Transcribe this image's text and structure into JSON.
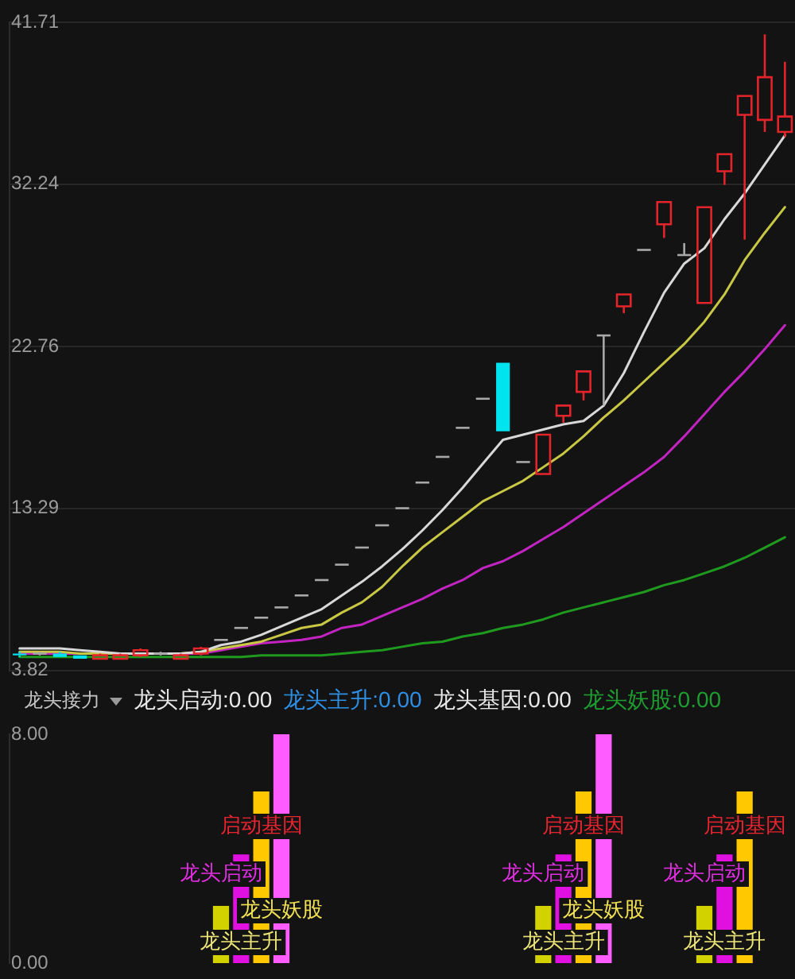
{
  "chart_data": [
    {
      "type": "candlestick",
      "categories": [
        null,
        null,
        null,
        null,
        null,
        null,
        null,
        null,
        null,
        null,
        null,
        null,
        null,
        null,
        null,
        null,
        null,
        null,
        null,
        null,
        null,
        null,
        null,
        null,
        null,
        null,
        null,
        null,
        null,
        null,
        null,
        null,
        null,
        null,
        null,
        null,
        null,
        null,
        null
      ],
      "ohlc": [
        [
          4.8,
          4.9,
          4.6,
          4.7
        ],
        [
          4.8,
          4.9,
          4.7,
          4.8
        ],
        [
          4.8,
          4.9,
          4.6,
          4.6
        ],
        [
          4.7,
          4.7,
          4.5,
          4.5
        ],
        [
          4.5,
          4.8,
          4.5,
          4.7
        ],
        [
          4.5,
          4.8,
          4.5,
          4.7
        ],
        [
          4.7,
          5.1,
          4.6,
          5.0
        ],
        [
          4.8,
          4.9,
          4.7,
          4.8
        ],
        [
          4.5,
          4.8,
          4.5,
          4.7
        ],
        [
          4.8,
          5.2,
          4.7,
          5.1
        ],
        [
          5.6,
          5.6,
          5.6,
          5.6
        ],
        [
          6.3,
          6.3,
          6.3,
          6.3
        ],
        [
          6.9,
          6.9,
          6.9,
          6.9
        ],
        [
          7.5,
          7.5,
          7.5,
          7.5
        ],
        [
          8.2,
          8.2,
          8.2,
          8.2
        ],
        [
          9.1,
          9.1,
          9.1,
          9.1
        ],
        [
          10.0,
          10.0,
          10.0,
          10.0
        ],
        [
          11.0,
          11.0,
          11.0,
          11.0
        ],
        [
          12.3,
          12.3,
          12.3,
          12.3
        ],
        [
          13.3,
          13.3,
          13.3,
          13.3
        ],
        [
          14.8,
          14.8,
          14.8,
          14.8
        ],
        [
          16.3,
          16.3,
          16.3,
          16.3
        ],
        [
          18.0,
          18.0,
          18.0,
          18.0
        ],
        [
          19.7,
          19.7,
          19.7,
          19.7
        ],
        [
          21.8,
          21.8,
          17.8,
          17.8
        ],
        [
          16.0,
          16.0,
          16.0,
          16.0
        ],
        [
          15.3,
          17.6,
          15.3,
          17.6
        ],
        [
          18.7,
          19.3,
          18.3,
          19.3
        ],
        [
          20.1,
          21.3,
          19.6,
          21.3
        ],
        [
          23.4,
          23.4,
          19.3,
          23.4
        ],
        [
          25.1,
          25.8,
          24.7,
          25.8
        ],
        [
          28.4,
          28.4,
          28.4,
          28.4
        ],
        [
          29.9,
          31.2,
          29.1,
          31.2
        ],
        [
          28.1,
          28.8,
          28.1,
          28.1
        ],
        [
          25.3,
          30.9,
          25.3,
          30.9
        ],
        [
          33.0,
          34.0,
          32.2,
          34.0
        ],
        [
          36.3,
          37.4,
          29.0,
          37.4
        ],
        [
          36.0,
          41.0,
          35.3,
          38.5
        ],
        [
          35.3,
          39.4,
          35.0,
          36.2
        ]
      ],
      "colors": [
        "#00e4ef",
        "#a8a8a8",
        "#00e4ef",
        "#00e4ef",
        "#e3242b",
        "#e3242b",
        "#e3242b",
        "#a8a8a8",
        "#e3242b",
        "#e3242b",
        "#a8a8a8",
        "#a8a8a8",
        "#a8a8a8",
        "#a8a8a8",
        "#a8a8a8",
        "#a8a8a8",
        "#a8a8a8",
        "#a8a8a8",
        "#a8a8a8",
        "#a8a8a8",
        "#a8a8a8",
        "#a8a8a8",
        "#a8a8a8",
        "#a8a8a8",
        "#00e4ef",
        "#a8a8a8",
        "#e3242b",
        "#e3242b",
        "#e3242b",
        "#a8a8a8",
        "#e3242b",
        "#a8a8a8",
        "#e3242b",
        "#a8a8a8",
        "#e3242b",
        "#e3242b",
        "#e3242b",
        "#e3242b",
        "#e3242b"
      ],
      "series": [
        {
          "type": "line",
          "color": "#d8d8d8",
          "values": [
            5.1,
            5.1,
            5.1,
            5.0,
            4.9,
            4.8,
            4.8,
            4.8,
            4.8,
            4.9,
            5.3,
            5.5,
            5.9,
            6.4,
            6.9,
            7.4,
            8.2,
            9.0,
            9.9,
            10.9,
            12.0,
            13.2,
            14.5,
            15.9,
            17.3,
            17.6,
            17.9,
            18.2,
            18.4,
            19.3,
            21.2,
            23.6,
            25.9,
            27.6,
            28.5,
            30.2,
            31.7,
            33.4,
            35.1
          ]
        },
        {
          "type": "line",
          "color": "#c8c844",
          "values": [
            4.9,
            4.9,
            4.9,
            4.8,
            4.8,
            4.8,
            4.8,
            4.8,
            4.8,
            4.9,
            5.1,
            5.3,
            5.5,
            5.9,
            6.3,
            6.5,
            7.2,
            7.8,
            8.7,
            9.9,
            11.0,
            11.9,
            12.8,
            13.7,
            14.3,
            14.9,
            15.7,
            16.5,
            17.5,
            18.6,
            19.6,
            20.7,
            21.8,
            22.9,
            24.2,
            25.8,
            27.8,
            29.4,
            30.9
          ]
        },
        {
          "type": "line",
          "color": "#c224c2",
          "values": [
            4.8,
            4.8,
            4.8,
            4.8,
            4.8,
            4.8,
            4.8,
            4.8,
            4.8,
            4.8,
            5.0,
            5.2,
            5.4,
            5.5,
            5.6,
            5.8,
            6.3,
            6.5,
            7.0,
            7.5,
            8.0,
            8.6,
            9.1,
            9.8,
            10.2,
            10.8,
            11.5,
            12.2,
            13.0,
            13.8,
            14.6,
            15.4,
            16.3,
            17.5,
            18.8,
            20.1,
            21.3,
            22.6,
            24.0
          ]
        },
        {
          "type": "line",
          "color": "#1f9a1f",
          "values": [
            4.6,
            4.6,
            4.6,
            4.6,
            4.6,
            4.6,
            4.6,
            4.6,
            4.6,
            4.6,
            4.6,
            4.6,
            4.7,
            4.7,
            4.7,
            4.7,
            4.8,
            4.9,
            5.0,
            5.2,
            5.4,
            5.5,
            5.8,
            6.0,
            6.3,
            6.5,
            6.8,
            7.2,
            7.5,
            7.8,
            8.1,
            8.4,
            8.8,
            9.1,
            9.5,
            9.9,
            10.4,
            11.0,
            11.6
          ]
        }
      ],
      "ylim": [
        3.82,
        41.71
      ],
      "yticks": [
        3.82,
        13.29,
        22.76,
        32.24,
        41.71
      ],
      "grid": "y",
      "tick_labels": "y"
    },
    {
      "type": "bar",
      "title": "龙头接力",
      "annotations": [
        "龙头启动:0.00",
        "龙头主升:0.00",
        "龙头基因:0.00",
        "龙头妖股:0.00"
      ],
      "categories": [
        null,
        null,
        null,
        null,
        null,
        null,
        null,
        null,
        null,
        null,
        null,
        null,
        null,
        null,
        null,
        null,
        null,
        null,
        null,
        null,
        null,
        null,
        null,
        null,
        null,
        null,
        null,
        null,
        null,
        null,
        null,
        null,
        null,
        null,
        null,
        null,
        null,
        null,
        null
      ],
      "series": [
        {
          "color": "#d2d200",
          "values": [
            null,
            null,
            null,
            null,
            null,
            null,
            null,
            null,
            null,
            null,
            2,
            null,
            null,
            null,
            null,
            null,
            null,
            null,
            null,
            null,
            null,
            null,
            null,
            null,
            null,
            null,
            2,
            null,
            null,
            null,
            null,
            null,
            null,
            null,
            2,
            null,
            null,
            null,
            null
          ],
          "value_labels": [
            null,
            null,
            null,
            null,
            null,
            null,
            null,
            null,
            null,
            null,
            "龙头启动",
            null,
            null,
            null,
            null,
            null,
            null,
            null,
            null,
            null,
            null,
            null,
            null,
            null,
            null,
            null,
            "龙头启动",
            null,
            null,
            null,
            null,
            null,
            null,
            null,
            "龙头启动",
            null,
            null,
            null,
            null
          ]
        },
        {
          "color": "#e010e0",
          "values": [
            null,
            null,
            null,
            null,
            null,
            null,
            null,
            null,
            null,
            null,
            null,
            3.8,
            null,
            null,
            null,
            null,
            null,
            null,
            null,
            null,
            null,
            null,
            null,
            null,
            null,
            null,
            null,
            3.8,
            null,
            null,
            null,
            null,
            null,
            null,
            null,
            3.8,
            null,
            null,
            null
          ],
          "value_labels": [
            null,
            null,
            null,
            null,
            null,
            null,
            null,
            null,
            null,
            null,
            null,
            "龙头主升",
            null,
            null,
            null,
            null,
            null,
            null,
            null,
            null,
            null,
            null,
            null,
            null,
            null,
            null,
            null,
            "龙头主升",
            null,
            null,
            null,
            null,
            null,
            null,
            null,
            "龙头主升",
            null,
            null,
            null
          ]
        },
        {
          "color": "#ffc800",
          "values": [
            null,
            null,
            null,
            null,
            null,
            null,
            null,
            null,
            null,
            null,
            null,
            null,
            6,
            null,
            null,
            null,
            null,
            null,
            null,
            null,
            null,
            null,
            null,
            null,
            null,
            null,
            null,
            null,
            6,
            null,
            null,
            null,
            null,
            null,
            null,
            null,
            6,
            null,
            null
          ],
          "value_labels": [
            null,
            null,
            null,
            null,
            null,
            null,
            null,
            null,
            null,
            null,
            null,
            null,
            "启动基因",
            null,
            null,
            null,
            null,
            null,
            null,
            null,
            null,
            null,
            null,
            null,
            null,
            null,
            null,
            null,
            "启动基因",
            null,
            null,
            null,
            null,
            null,
            null,
            null,
            "启动基因",
            null,
            null
          ]
        },
        {
          "color": "#ff5cff",
          "values": [
            null,
            null,
            null,
            null,
            null,
            null,
            null,
            null,
            null,
            null,
            null,
            null,
            null,
            8,
            null,
            null,
            null,
            null,
            null,
            null,
            null,
            null,
            null,
            null,
            null,
            null,
            null,
            null,
            null,
            8,
            null,
            null,
            null,
            null,
            null,
            null,
            null,
            null,
            null
          ],
          "value_labels": [
            null,
            null,
            null,
            null,
            null,
            null,
            null,
            null,
            null,
            null,
            null,
            null,
            null,
            "龙头妖股",
            null,
            null,
            null,
            null,
            null,
            null,
            null,
            null,
            null,
            null,
            null,
            null,
            null,
            null,
            null,
            "龙头妖股",
            null,
            null,
            null,
            null,
            null,
            null,
            null,
            null,
            null
          ]
        }
      ],
      "ylim": [
        0,
        8
      ],
      "yticks": [
        {
          "value": 0,
          "label": "0.00"
        },
        {
          "value": 8,
          "label": "8.00"
        }
      ],
      "tick_labels": "y"
    }
  ]
}
